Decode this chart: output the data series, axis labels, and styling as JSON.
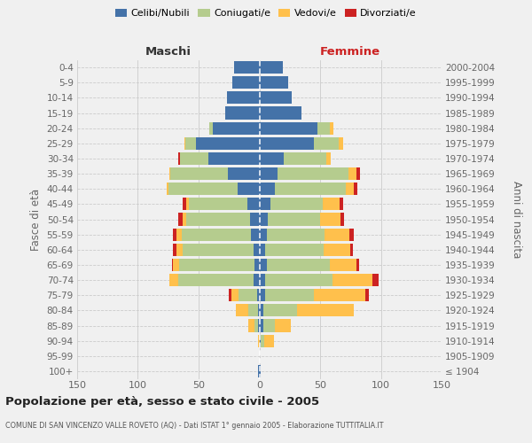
{
  "age_groups": [
    "100+",
    "95-99",
    "90-94",
    "85-89",
    "80-84",
    "75-79",
    "70-74",
    "65-69",
    "60-64",
    "55-59",
    "50-54",
    "45-49",
    "40-44",
    "35-39",
    "30-34",
    "25-29",
    "20-24",
    "15-19",
    "10-14",
    "5-9",
    "0-4"
  ],
  "birth_years": [
    "≤ 1904",
    "1905-1909",
    "1910-1914",
    "1915-1919",
    "1920-1924",
    "1925-1929",
    "1930-1934",
    "1935-1939",
    "1940-1944",
    "1945-1949",
    "1950-1954",
    "1955-1959",
    "1960-1964",
    "1965-1969",
    "1970-1974",
    "1975-1979",
    "1980-1984",
    "1985-1989",
    "1990-1994",
    "1995-1999",
    "2000-2004"
  ],
  "colors": {
    "celibi": "#4472a8",
    "coniugati": "#b5cc8e",
    "vedovi": "#ffc04c",
    "divorziati": "#cc2222"
  },
  "maschi": {
    "celibi": [
      1,
      0,
      0,
      1,
      1,
      2,
      5,
      4,
      5,
      7,
      8,
      10,
      18,
      26,
      42,
      52,
      38,
      28,
      27,
      22,
      21
    ],
    "coniugati": [
      0,
      0,
      0,
      3,
      8,
      15,
      62,
      62,
      58,
      57,
      52,
      48,
      57,
      47,
      23,
      9,
      3,
      0,
      0,
      0,
      0
    ],
    "vedovi": [
      0,
      0,
      1,
      5,
      10,
      6,
      7,
      5,
      5,
      4,
      3,
      2,
      1,
      1,
      0,
      1,
      0,
      0,
      0,
      0,
      0
    ],
    "divorziati": [
      0,
      0,
      0,
      0,
      0,
      2,
      0,
      1,
      3,
      3,
      4,
      3,
      0,
      0,
      2,
      0,
      0,
      0,
      0,
      0,
      0
    ]
  },
  "femmine": {
    "nubili": [
      1,
      0,
      1,
      3,
      3,
      5,
      5,
      6,
      5,
      6,
      7,
      9,
      13,
      15,
      20,
      45,
      48,
      35,
      27,
      24,
      19
    ],
    "coniugate": [
      0,
      0,
      3,
      10,
      28,
      40,
      55,
      52,
      48,
      48,
      43,
      43,
      58,
      58,
      35,
      20,
      10,
      0,
      0,
      0,
      0
    ],
    "vedove": [
      0,
      0,
      8,
      13,
      47,
      42,
      33,
      22,
      22,
      20,
      17,
      14,
      7,
      7,
      4,
      4,
      3,
      0,
      0,
      0,
      0
    ],
    "divorziate": [
      0,
      0,
      0,
      0,
      0,
      3,
      5,
      2,
      2,
      4,
      3,
      3,
      3,
      3,
      0,
      0,
      0,
      0,
      0,
      0,
      0
    ]
  },
  "xlim": 150,
  "title": "Popolazione per età, sesso e stato civile - 2005",
  "subtitle": "COMUNE DI SAN VINCENZO VALLE ROVETO (AQ) - Dati ISTAT 1° gennaio 2005 - Elaborazione TUTTITALIA.IT",
  "ylabel_left": "Fasce di età",
  "ylabel_right": "Anni di nascita",
  "label_maschi": "Maschi",
  "label_femmine": "Femmine",
  "bg_color": "#f0f0f0",
  "bar_height": 0.82,
  "legend_labels": [
    "Celibi/Nubili",
    "Coniugati/e",
    "Vedovi/e",
    "Divorziati/e"
  ]
}
